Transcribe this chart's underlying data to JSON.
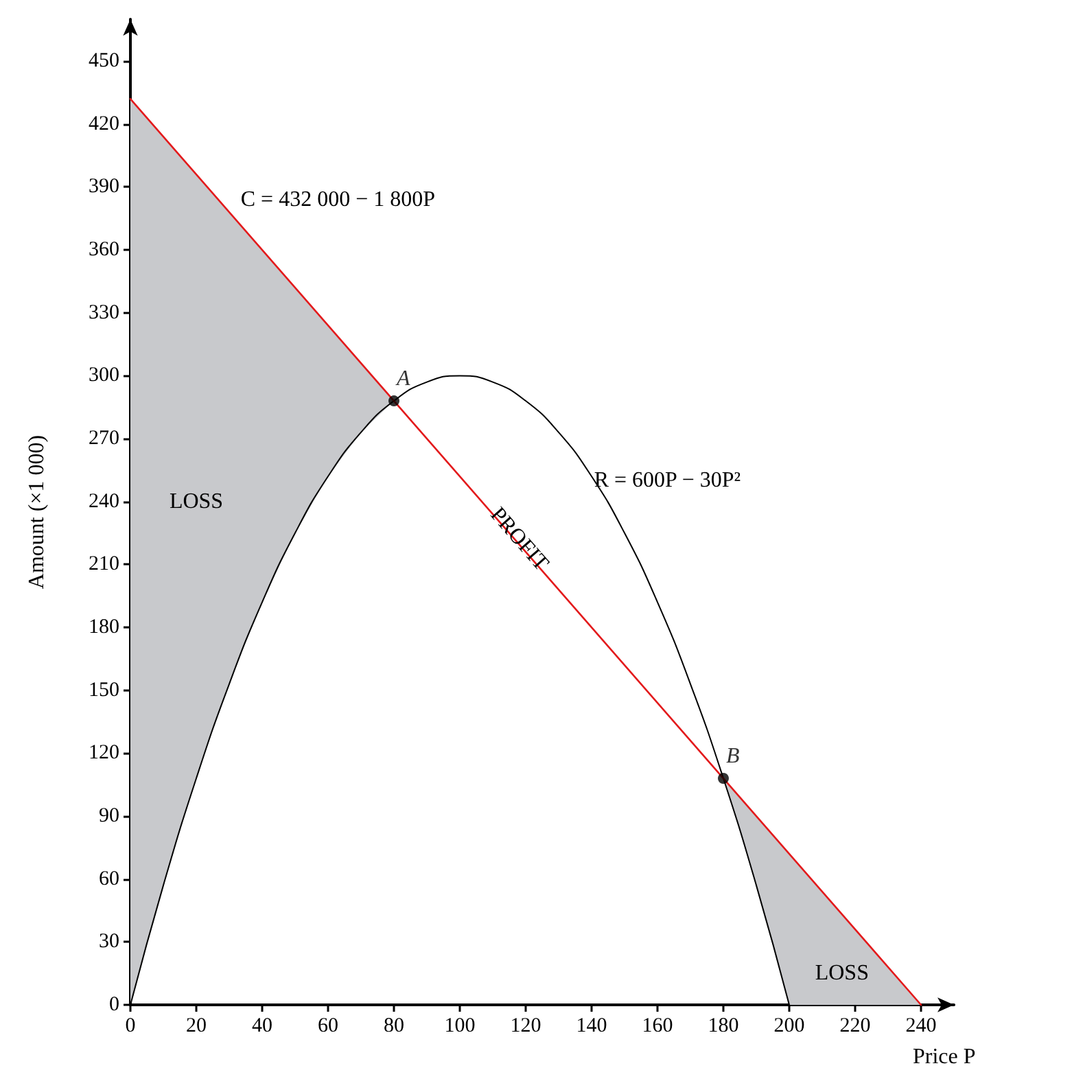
{
  "chart_data": {
    "type": "line",
    "xlabel": "Price P",
    "ylabel": "Amount (×1 000)",
    "xlim": [
      0,
      250
    ],
    "xticks": [
      0,
      20,
      40,
      60,
      80,
      100,
      120,
      140,
      160,
      180,
      200,
      220,
      240
    ],
    "ylim": [
      0,
      470
    ],
    "yticks": [
      0,
      30,
      60,
      90,
      120,
      150,
      180,
      210,
      240,
      270,
      300,
      330,
      360,
      390,
      420,
      450
    ],
    "grid": false,
    "series": [
      {
        "type": "area",
        "color": "#c8c9cc",
        "x": [
          0,
          10,
          20,
          30,
          40,
          50,
          60,
          70,
          80
        ],
        "values": [
          432,
          414,
          396,
          378,
          360,
          342,
          324,
          306,
          288
        ]
      },
      {
        "type": "area",
        "color": "#c8c9cc",
        "x": [
          180,
          190,
          200,
          210,
          220,
          230,
          240
        ],
        "values": [
          108,
          90,
          72,
          54,
          36,
          18,
          0
        ]
      },
      {
        "color": "#000000",
        "x": [
          0,
          10,
          20,
          30,
          40,
          50,
          60,
          70,
          80,
          90,
          100,
          110,
          120,
          130,
          140,
          150,
          160,
          170,
          180,
          190,
          200
        ],
        "values": [
          0,
          57,
          108,
          153,
          192,
          225,
          252,
          273,
          288,
          297,
          300,
          297,
          288,
          273,
          252,
          225,
          192,
          153,
          108,
          57,
          0
        ]
      },
      {
        "color": "#e31a1c",
        "x": [
          0,
          240
        ],
        "values": [
          432,
          0
        ]
      },
      {
        "type": "scatter",
        "color": "#000000",
        "marker": "circle",
        "x": [
          80,
          180
        ],
        "values": [
          288,
          108
        ],
        "value_labels": [
          "A",
          "B"
        ]
      }
    ],
    "annotations": [
      "C = 432 000 − 1 800P",
      "R = 600P − 30P²",
      "PROFIT",
      "LOSS",
      "LOSS"
    ]
  }
}
